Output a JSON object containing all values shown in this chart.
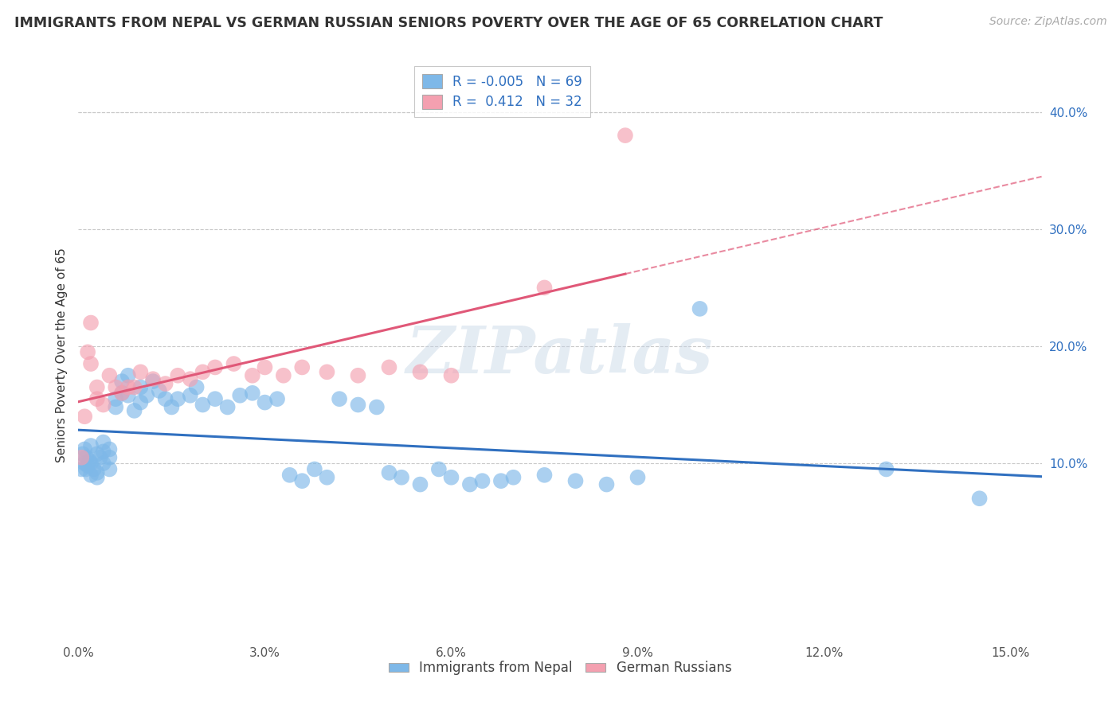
{
  "title": "IMMIGRANTS FROM NEPAL VS GERMAN RUSSIAN SENIORS POVERTY OVER THE AGE OF 65 CORRELATION CHART",
  "source": "Source: ZipAtlas.com",
  "ylabel": "Seniors Poverty Over the Age of 65",
  "legend_label1": "Immigrants from Nepal",
  "legend_label2": "German Russians",
  "R1": -0.005,
  "N1": 69,
  "R2": 0.412,
  "N2": 32,
  "color1": "#7EB8E8",
  "color2": "#F4A0B0",
  "trendline1_color": "#3070C0",
  "trendline2_color": "#E05878",
  "xlim": [
    0.0,
    0.155
  ],
  "ylim": [
    -0.05,
    0.435
  ],
  "xticks": [
    0.0,
    0.03,
    0.06,
    0.09,
    0.12,
    0.15
  ],
  "xtick_labels": [
    "0.0%",
    "3.0%",
    "6.0%",
    "9.0%",
    "12.0%",
    "15.0%"
  ],
  "yticks": [
    0.1,
    0.2,
    0.3,
    0.4
  ],
  "ytick_labels": [
    "10.0%",
    "20.0%",
    "30.0%",
    "40.0%"
  ],
  "watermark": "ZIPatlas",
  "background_color": "#FFFFFF",
  "grid_color": "#C8C8C8",
  "nepal_x": [
    0.0005,
    0.0007,
    0.001,
    0.001,
    0.0012,
    0.0013,
    0.0015,
    0.0018,
    0.002,
    0.002,
    0.002,
    0.0025,
    0.003,
    0.003,
    0.003,
    0.0035,
    0.004,
    0.004,
    0.004,
    0.005,
    0.005,
    0.005,
    0.006,
    0.006,
    0.007,
    0.007,
    0.008,
    0.008,
    0.009,
    0.01,
    0.01,
    0.011,
    0.012,
    0.013,
    0.014,
    0.015,
    0.016,
    0.018,
    0.019,
    0.02,
    0.022,
    0.024,
    0.026,
    0.028,
    0.03,
    0.032,
    0.034,
    0.036,
    0.038,
    0.04,
    0.042,
    0.045,
    0.048,
    0.05,
    0.052,
    0.055,
    0.058,
    0.06,
    0.063,
    0.065,
    0.068,
    0.07,
    0.075,
    0.08,
    0.085,
    0.09,
    0.1,
    0.13,
    0.145
  ],
  "nepal_y": [
    0.095,
    0.108,
    0.1,
    0.112,
    0.095,
    0.105,
    0.098,
    0.102,
    0.09,
    0.1,
    0.115,
    0.095,
    0.088,
    0.092,
    0.108,
    0.105,
    0.1,
    0.11,
    0.118,
    0.095,
    0.105,
    0.112,
    0.155,
    0.148,
    0.16,
    0.17,
    0.158,
    0.175,
    0.145,
    0.152,
    0.165,
    0.158,
    0.17,
    0.162,
    0.155,
    0.148,
    0.155,
    0.158,
    0.165,
    0.15,
    0.155,
    0.148,
    0.158,
    0.16,
    0.152,
    0.155,
    0.09,
    0.085,
    0.095,
    0.088,
    0.155,
    0.15,
    0.148,
    0.092,
    0.088,
    0.082,
    0.095,
    0.088,
    0.082,
    0.085,
    0.085,
    0.088,
    0.09,
    0.085,
    0.082,
    0.088,
    0.232,
    0.095,
    0.07
  ],
  "german_x": [
    0.0005,
    0.001,
    0.0015,
    0.002,
    0.002,
    0.003,
    0.003,
    0.004,
    0.005,
    0.006,
    0.007,
    0.008,
    0.009,
    0.01,
    0.012,
    0.014,
    0.016,
    0.018,
    0.02,
    0.022,
    0.025,
    0.028,
    0.03,
    0.033,
    0.036,
    0.04,
    0.045,
    0.05,
    0.055,
    0.06,
    0.075,
    0.088
  ],
  "german_y": [
    0.105,
    0.14,
    0.195,
    0.185,
    0.22,
    0.155,
    0.165,
    0.15,
    0.175,
    0.165,
    0.16,
    0.165,
    0.165,
    0.178,
    0.172,
    0.168,
    0.175,
    0.172,
    0.178,
    0.182,
    0.185,
    0.175,
    0.182,
    0.175,
    0.182,
    0.178,
    0.175,
    0.182,
    0.178,
    0.175,
    0.25,
    0.38
  ]
}
